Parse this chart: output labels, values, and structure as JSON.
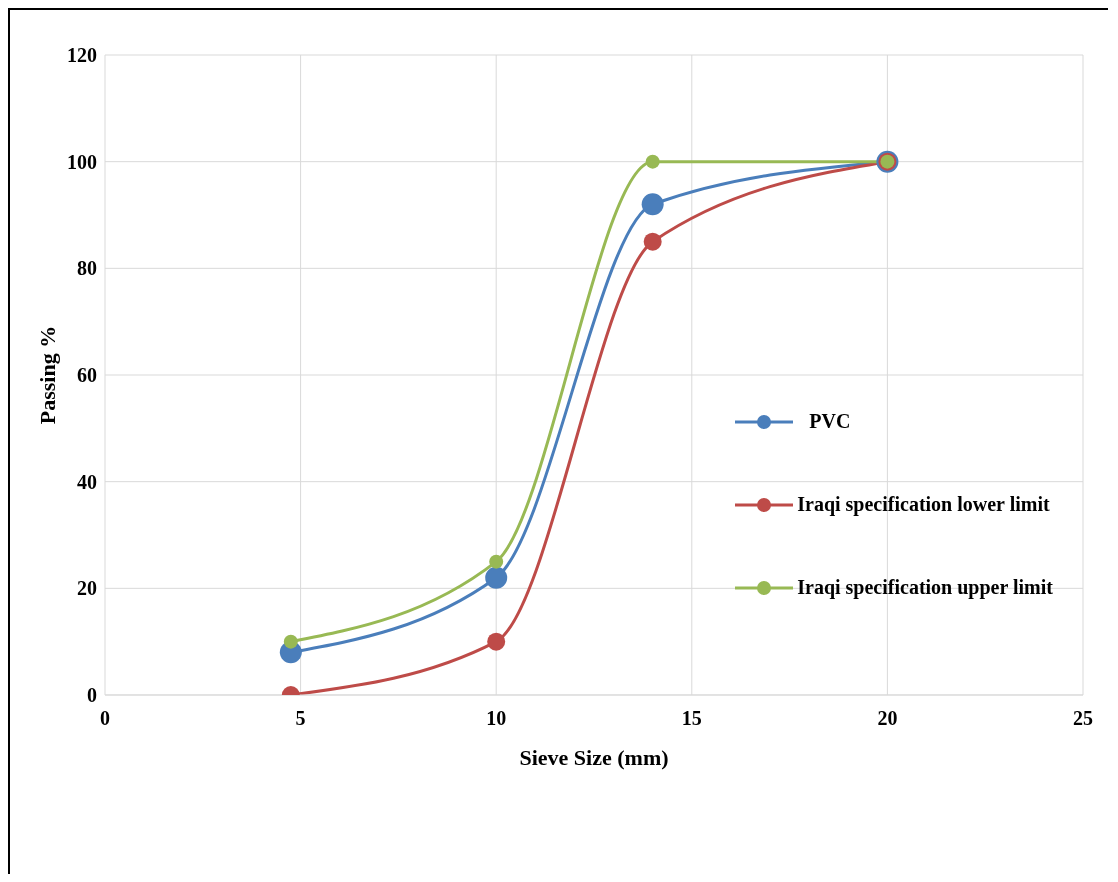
{
  "chart_data": {
    "type": "line",
    "xlabel": "Sieve Size (mm)",
    "ylabel": "Passing %",
    "x": [
      4.75,
      10,
      14,
      20
    ],
    "series": [
      {
        "name": "PVC",
        "color": "#4a7ebb",
        "values": [
          8,
          22,
          92,
          100
        ]
      },
      {
        "name": "Iraqi specification lower limit",
        "color": "#be4b48",
        "values": [
          0,
          10,
          85,
          100
        ]
      },
      {
        "name": "Iraqi specification upper limit",
        "color": "#98b954",
        "values": [
          10,
          25,
          100,
          100
        ]
      }
    ],
    "xlim": [
      0,
      25
    ],
    "xticks": [
      0,
      5,
      10,
      15,
      20,
      25
    ],
    "ylim": [
      0,
      120
    ],
    "yticks": [
      0,
      20,
      40,
      60,
      80,
      100,
      120
    ],
    "grid": true,
    "legend": "right",
    "marker": "circle",
    "line_style": "solid"
  }
}
